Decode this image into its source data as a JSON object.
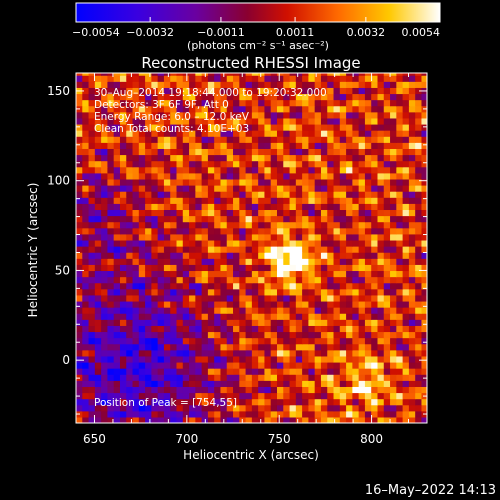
{
  "chart_data": {
    "type": "heatmap",
    "title": "Reconstructed RHESSI Image",
    "xlabel": "Heliocentric X (arcsec)",
    "ylabel": "Heliocentric Y (arcsec)",
    "xlim": [
      640,
      830
    ],
    "ylim": [
      -35,
      160
    ],
    "x_ticks": [
      650,
      700,
      750,
      800
    ],
    "y_ticks": [
      0,
      50,
      100,
      150
    ],
    "colorbar": {
      "unit_label": "(photons cm⁻² s⁻¹ asec⁻²)",
      "range": [
        -0.0054,
        0.0054
      ],
      "ticks": [
        -0.0054,
        -0.0032,
        -0.0011,
        0.0011,
        0.0032,
        0.0054
      ],
      "tick_labels": [
        "−0.0054",
        "−0.0032",
        "−0.0011",
        "0.0011",
        "0.0032",
        "0.0054"
      ],
      "colors": [
        "#0000ff",
        "#5a00b8",
        "#8a0040",
        "#cc2200",
        "#ff7a00",
        "#ffd400",
        "#ffffff"
      ]
    },
    "annotations": [
      "30–Aug–2014 19:18:44.000 to 19:20:32.000",
      "Detectors: 3F 6F 9F, Att 0",
      "Energy Range: 6.0 – 12.0 keV",
      "Clean     Total counts: 4.10E+03"
    ],
    "peak_label": "Position of Peak = [754,55]",
    "peak": [
      754,
      55
    ],
    "grid": false
  },
  "footer": {
    "timestamp": "16–May–2022 14:13"
  }
}
